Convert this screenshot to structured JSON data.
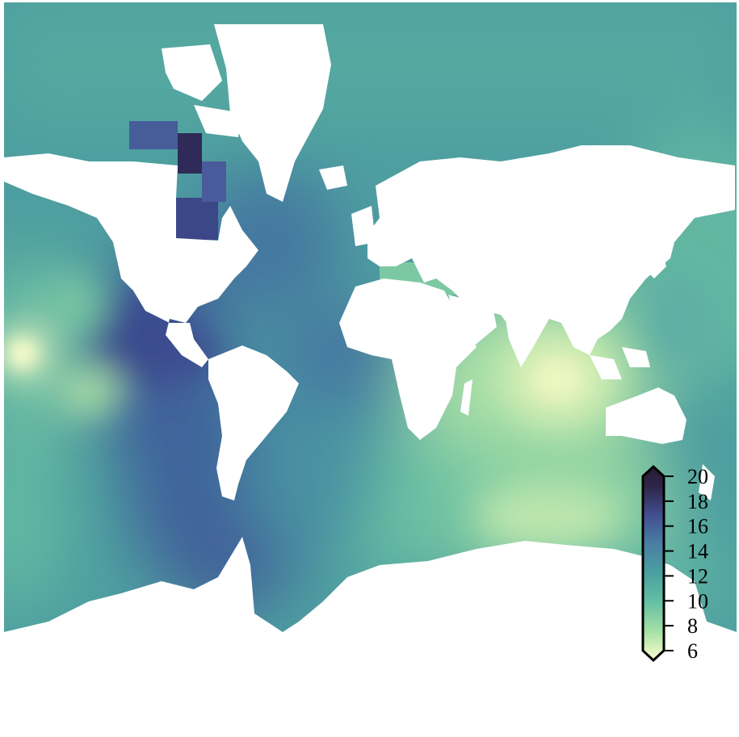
{
  "map": {
    "projection": "mercator",
    "ocean_field": "continuous scalar field over oceans; land masked white",
    "colormap": {
      "name": "deep",
      "stops": [
        "#fdfecc",
        "#a5e0a5",
        "#64c0a4",
        "#4aa0a0",
        "#4a7ea3",
        "#414f90",
        "#2d2547",
        "#291a34"
      ]
    },
    "features": [
      {
        "name": "land-north-america",
        "color": "#ffffff"
      },
      {
        "name": "land-south-america",
        "color": "#ffffff"
      },
      {
        "name": "land-greenland",
        "color": "#ffffff"
      },
      {
        "name": "land-eurasia",
        "color": "#ffffff"
      },
      {
        "name": "land-africa",
        "color": "#ffffff"
      },
      {
        "name": "land-australia",
        "color": "#ffffff"
      },
      {
        "name": "land-antarctica",
        "color": "#ffffff"
      }
    ]
  },
  "colorbar": {
    "min": 6,
    "max": 20,
    "extend": "both",
    "ticks": [
      "6",
      "8",
      "10",
      "12",
      "14",
      "16",
      "18",
      "20"
    ]
  }
}
